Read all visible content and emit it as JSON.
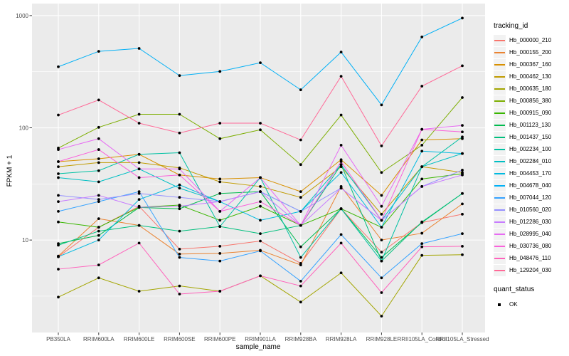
{
  "chart_data": {
    "type": "line",
    "title": "",
    "xlabel": "sample_name",
    "ylabel": "FPKM + 1",
    "y_scale": "log10",
    "ylim": [
      1.5,
      1280
    ],
    "y_major_ticks": [
      10,
      100,
      1000
    ],
    "y_minor_ticks": [
      3.162,
      31.62,
      316.2
    ],
    "grid": "on",
    "panel_bg": "#EBEBEB",
    "grid_color": "#FFFFFF",
    "tick_text_color": "#4D4D4D",
    "point_color": "#000000",
    "legend_position": "right",
    "categories": [
      "PB350LA",
      "RRIM600LA",
      "RRIM600LE",
      "RRIM600SE",
      "RRIM600PE",
      "RRIM901LA",
      "RRIM928BA",
      "RRIM928LA",
      "RRIM928LE",
      "RRII105LA_Control",
      "RRII105LA_Stressed"
    ],
    "series": [
      {
        "name": "Hb_000000_210",
        "color": "#F8766D",
        "values": [
          7.1,
          13,
          20,
          8.3,
          8.8,
          9.8,
          6.2,
          19,
          7.8,
          14.3,
          17
        ]
      },
      {
        "name": "Hb_000155_200",
        "color": "#EA8331",
        "values": [
          7.2,
          15.5,
          13.5,
          7.5,
          7.6,
          8.1,
          6.0,
          30,
          10,
          11.5,
          21
        ]
      },
      {
        "name": "Hb_000367_160",
        "color": "#D89000",
        "values": [
          50,
          53,
          58,
          38,
          35,
          36,
          27,
          52,
          25,
          78,
          80
        ]
      },
      {
        "name": "Hb_000462_130",
        "color": "#C09B00",
        "values": [
          45,
          49,
          49,
          44,
          33,
          30,
          24,
          45,
          17,
          45,
          40
        ]
      },
      {
        "name": "Hb_000635_180",
        "color": "#A3A500",
        "values": [
          3.1,
          4.6,
          3.5,
          3.9,
          3.5,
          4.8,
          2.8,
          5.1,
          2.1,
          7.3,
          7.4
        ]
      },
      {
        "name": "Hb_000856_380",
        "color": "#7CAE00",
        "values": [
          66,
          101,
          132,
          132,
          80,
          96,
          47,
          130,
          40,
          70,
          186
        ]
      },
      {
        "name": "Hb_000915_090",
        "color": "#39B600",
        "values": [
          14.5,
          13,
          19.6,
          20.5,
          15,
          20,
          13.5,
          19,
          13,
          35,
          39
        ]
      },
      {
        "name": "Hb_001123_130",
        "color": "#00BB4E",
        "values": [
          9.3,
          11,
          19.5,
          19,
          26,
          27,
          8.7,
          19,
          7.0,
          14.3,
          26
        ]
      },
      {
        "name": "Hb_001437_150",
        "color": "#00BF7D",
        "values": [
          9.0,
          12,
          13.5,
          12,
          13.2,
          11.4,
          13.5,
          47,
          6.5,
          14.5,
          26
        ]
      },
      {
        "name": "Hb_002234_100",
        "color": "#00C1A3",
        "values": [
          39,
          41.5,
          58,
          60,
          13.2,
          36,
          7.0,
          19,
          6.5,
          45,
          83
        ]
      },
      {
        "name": "Hb_002284_010",
        "color": "#00BFC4",
        "values": [
          36,
          33,
          43,
          29,
          22,
          27,
          18,
          47,
          15,
          45,
          59
        ]
      },
      {
        "name": "Hb_004453_170",
        "color": "#00BAE0",
        "values": [
          7.1,
          10,
          23,
          31,
          22,
          15,
          18,
          40,
          13,
          62,
          59
        ]
      },
      {
        "name": "Hb_004678_040",
        "color": "#00B0F6",
        "values": [
          350,
          480,
          510,
          292,
          318,
          380,
          218,
          473,
          160,
          645,
          950
        ]
      },
      {
        "name": "Hb_007044_120",
        "color": "#35A2FF",
        "values": [
          18,
          22,
          27,
          7.0,
          6.5,
          8.0,
          4.3,
          11.2,
          4.6,
          9.3,
          11.4
        ]
      },
      {
        "name": "Hb_010560_020",
        "color": "#9590FF",
        "values": [
          25,
          23,
          26,
          24,
          22,
          27,
          18,
          29,
          15,
          30,
          42
        ]
      },
      {
        "name": "Hb_012286_030",
        "color": "#C77CFF",
        "values": [
          22,
          25,
          19.6,
          20,
          22,
          27,
          13.5,
          29,
          15,
          30,
          38
        ]
      },
      {
        "name": "Hb_028995_040",
        "color": "#E76BF3",
        "values": [
          64,
          80,
          43,
          43,
          18,
          36,
          13.5,
          70,
          20,
          97,
          105
        ]
      },
      {
        "name": "Hb_030736_080",
        "color": "#FA62DB",
        "values": [
          50,
          64,
          36,
          38,
          18,
          22,
          13.5,
          50,
          15,
          97,
          92
        ]
      },
      {
        "name": "Hb_048476_110",
        "color": "#FF62BC",
        "values": [
          5.5,
          6.0,
          9.4,
          3.3,
          3.5,
          4.8,
          3.9,
          9.4,
          3.4,
          8.7,
          8.8
        ]
      },
      {
        "name": "Hb_129204_030",
        "color": "#FF6A98",
        "values": [
          130,
          177,
          110,
          90,
          110,
          110,
          78,
          288,
          69,
          235,
          357
        ]
      }
    ],
    "legend": {
      "series_title": "tracking_id",
      "status_title": "quant_status",
      "status_items": [
        {
          "label": "OK",
          "marker": "black-square"
        }
      ]
    }
  }
}
